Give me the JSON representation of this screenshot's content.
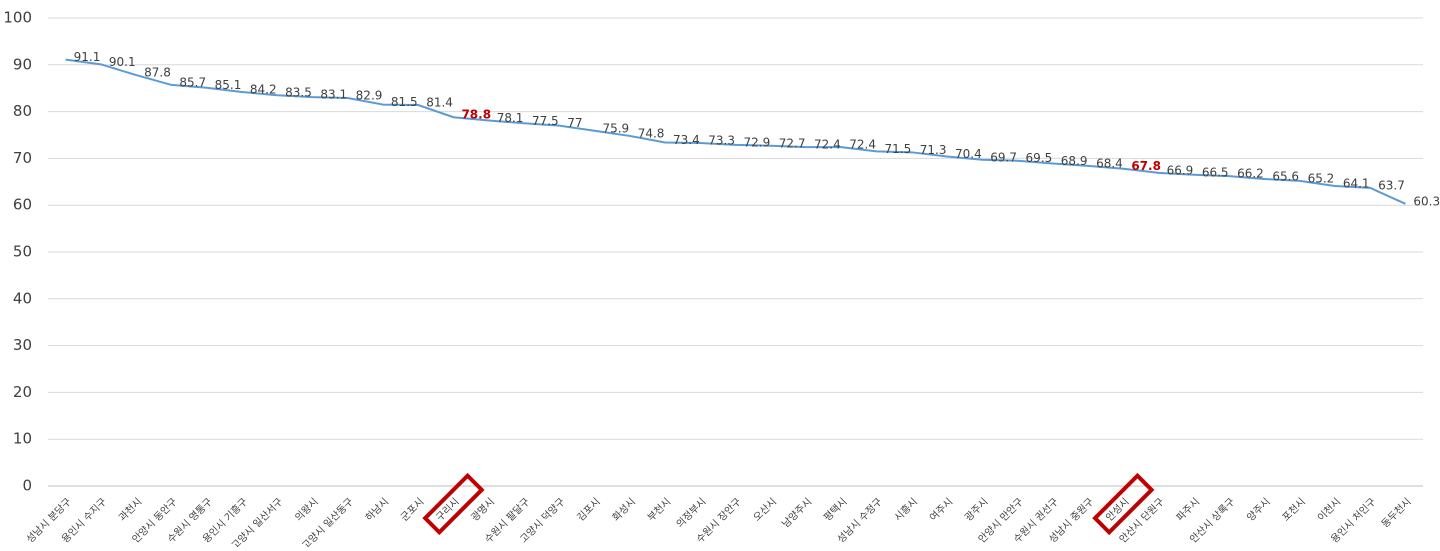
{
  "chart_data": {
    "type": "line",
    "categories": [
      "성남시 분당구",
      "용인시 수지구",
      "과천시",
      "안양시 동안구",
      "수원시 영통구",
      "용인시 기흥구",
      "고양시 일산서구",
      "의왕시",
      "고양시 일산동구",
      "하남시",
      "군포시",
      "구리시",
      "광명시",
      "수원시 팔달구",
      "고양시 덕양구",
      "김포시",
      "화성시",
      "부천시",
      "의정부시",
      "수원시 장안구",
      "오산시",
      "남양주시",
      "평택시",
      "성남시 수정구",
      "시흥시",
      "여주시",
      "광주시",
      "안양시 만안구",
      "수원시 권선구",
      "성남시 중원구",
      "안성시",
      "안산시 단원구",
      "파주시",
      "안산시 상록구",
      "양주시",
      "포천시",
      "이천시",
      "용인시 처인구",
      "동두천시"
    ],
    "series": [
      {
        "color": "#5b9bd5",
        "values": [
          91.1,
          90.1,
          87.8,
          85.7,
          85.1,
          84.2,
          83.5,
          83.1,
          82.9,
          81.5,
          81.4,
          78.8,
          78.1,
          77.5,
          77,
          75.9,
          74.8,
          73.4,
          73.3,
          72.9,
          72.7,
          72.4,
          72.4,
          71.5,
          71.3,
          70.4,
          69.7,
          69.5,
          68.9,
          68.4,
          67.8,
          66.9,
          66.5,
          66.2,
          65.6,
          65.2,
          64.1,
          63.7,
          60.3
        ]
      }
    ],
    "ylim": [
      0,
      100
    ],
    "yticks": [
      0,
      10,
      20,
      30,
      40,
      50,
      60,
      70,
      80,
      90,
      100
    ],
    "grid": true,
    "highlight_indices": [
      11,
      30
    ],
    "highlight_color": "#c00000"
  }
}
